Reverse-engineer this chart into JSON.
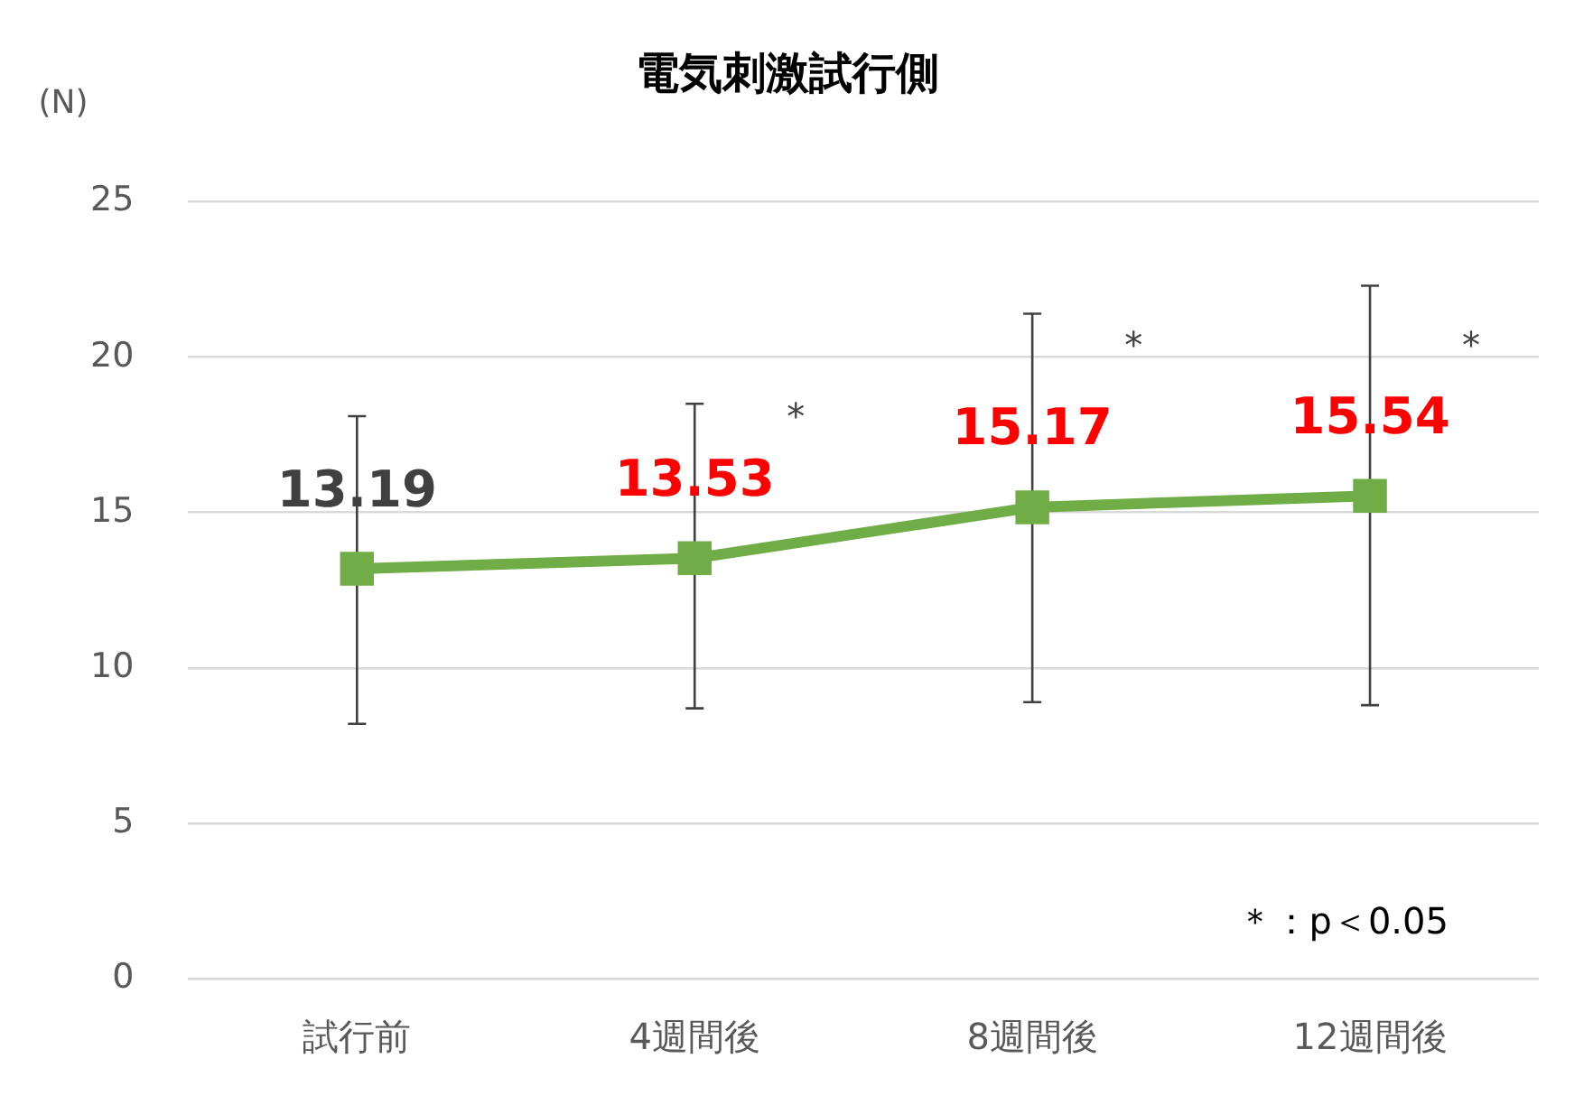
{
  "chart_data": {
    "type": "line",
    "title": "電気刺激試行側",
    "ylabel": "(N)",
    "categories": [
      "試行前",
      "4週間後",
      "8週間後",
      "12週間後"
    ],
    "series": [
      {
        "color": "#70ad47",
        "values": [
          13.19,
          13.53,
          15.17,
          15.54
        ],
        "errors": [
          [
            8.2,
            18.1
          ],
          [
            8.7,
            18.5
          ],
          [
            8.9,
            21.4
          ],
          [
            8.8,
            22.3
          ]
        ]
      }
    ],
    "ylim": [
      0,
      25
    ],
    "yticks": [
      0,
      5,
      10,
      15,
      20,
      25
    ],
    "grid": "y",
    "legend": false,
    "marker": "square",
    "line_style": "solid",
    "data_labels": true,
    "annotations": [
      {
        "text": "*",
        "x": "4週間後",
        "y": 18
      },
      {
        "text": "*",
        "x": "8週間後",
        "y": 20.3
      },
      {
        "text": "*",
        "x": "12週間後",
        "y": 20.3
      },
      "＊：p＜0.05"
    ]
  }
}
